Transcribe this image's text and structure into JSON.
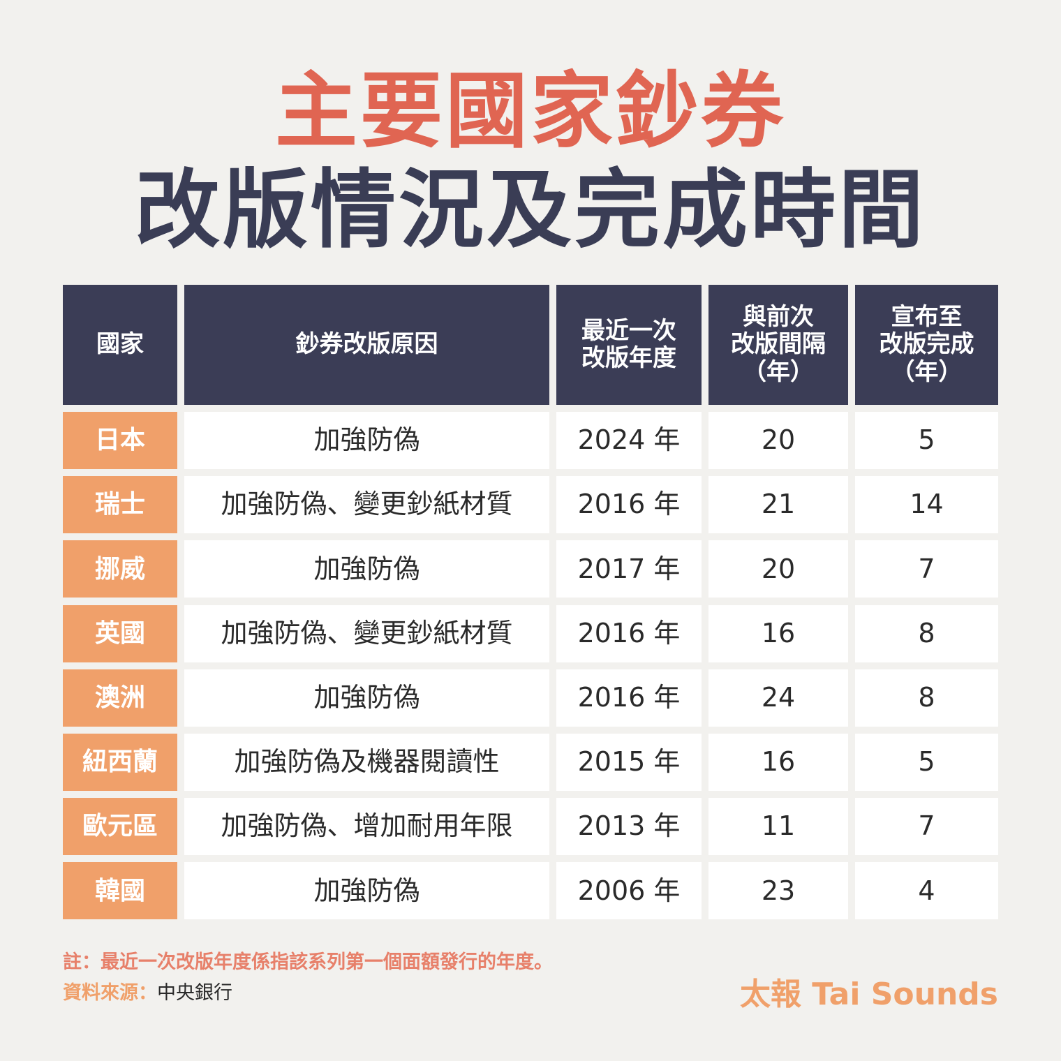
{
  "header": {
    "title": [
      "主要國家鈔券",
      "改版情況及完成時間"
    ]
  },
  "table": {
    "columns": [
      [
        "國家"
      ],
      [
        "鈔券改版原因"
      ],
      [
        "最近一次",
        "改版年度"
      ],
      [
        "與前次",
        "改版間隔",
        "（年）"
      ],
      [
        "宣布至",
        "改版完成",
        "（年）"
      ]
    ],
    "rows": [
      [
        "日本",
        "加強防偽",
        "2024 年",
        20,
        5
      ],
      [
        "瑞士",
        "加強防偽、變更鈔紙材質",
        "2016 年",
        21,
        14
      ],
      [
        "挪威",
        "加強防偽",
        "2017 年",
        20,
        7
      ],
      [
        "英國",
        "加強防偽、變更鈔紙材質",
        "2016 年",
        16,
        8
      ],
      [
        "澳洲",
        "加強防偽",
        "2016 年",
        24,
        8
      ],
      [
        "紐西蘭",
        "加強防偽及機器閱讀性",
        "2015 年",
        16,
        5
      ],
      [
        "歐元區",
        "加強防偽、增加耐用年限",
        "2013 年",
        11,
        7
      ],
      [
        "韓國",
        "加強防偽",
        "2006 年",
        23,
        4
      ]
    ]
  },
  "footer": {
    "note": "註：最近一次改版年度係指該系列第一個面額發行的年度。",
    "source_label": "資料來源：",
    "source": "中央銀行",
    "brand": "太報 Tai Sounds"
  }
}
